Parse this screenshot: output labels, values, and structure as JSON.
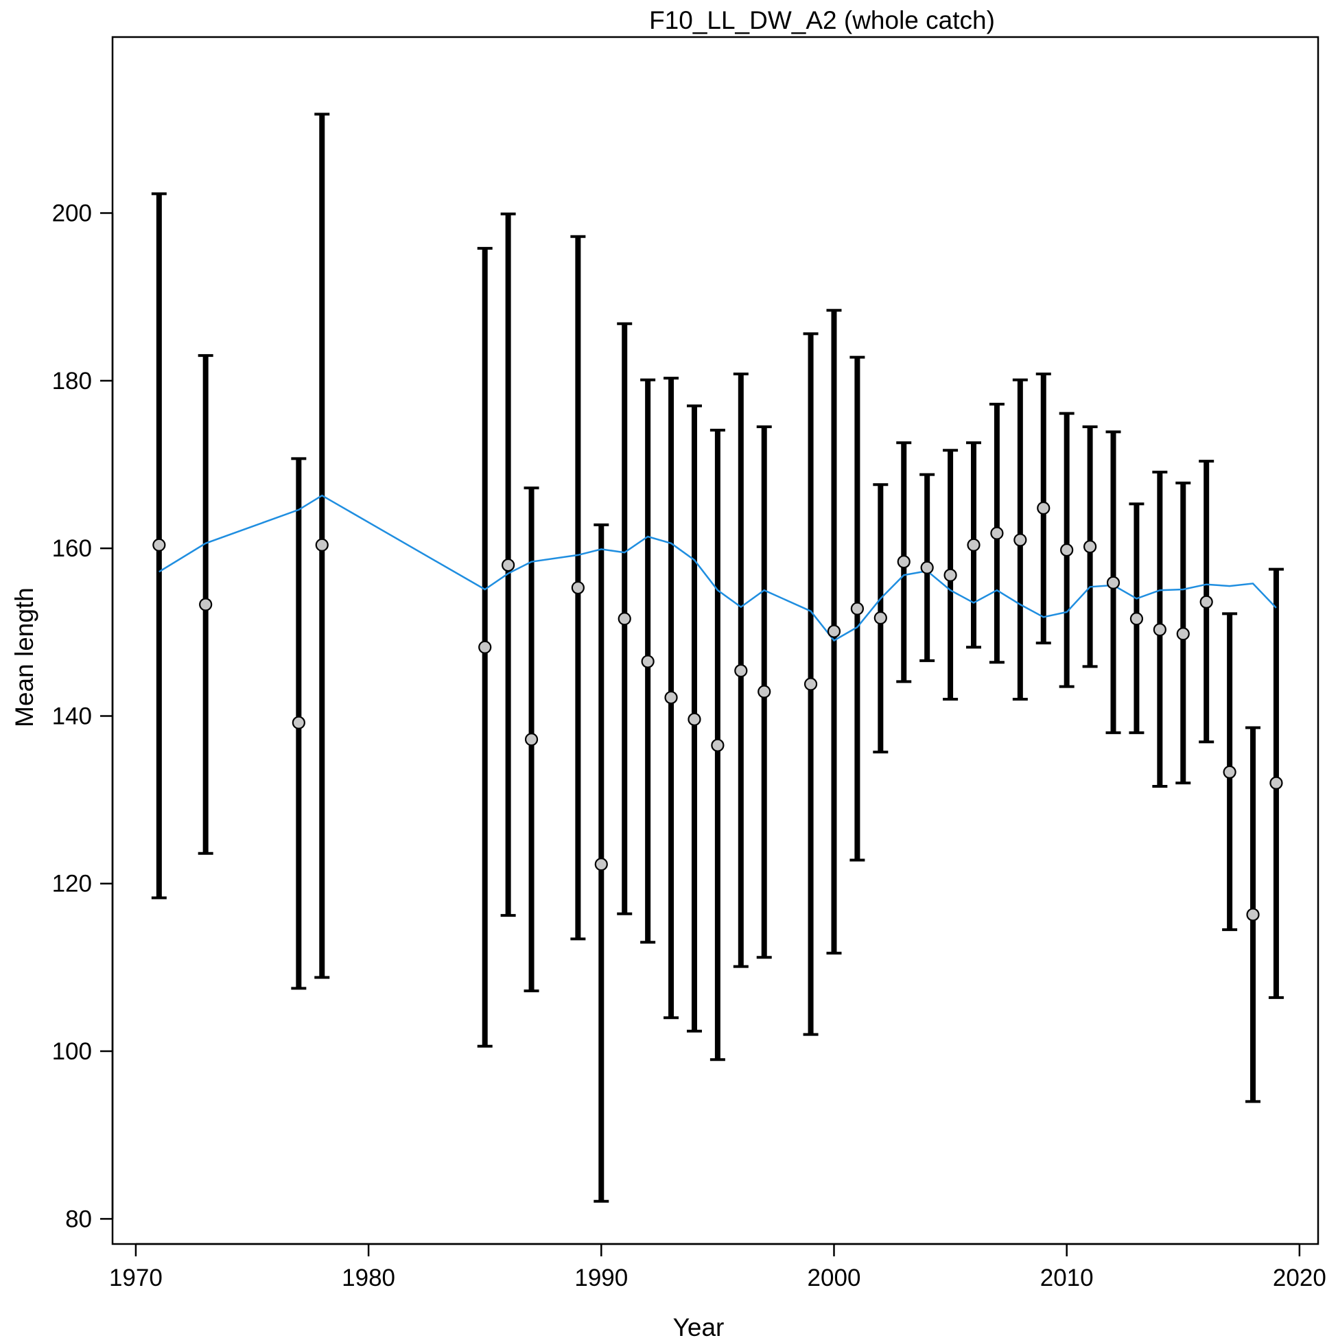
{
  "chart_data": {
    "type": "scatter",
    "title": "F10_LL_DW_A2 (whole catch)",
    "xlabel": "Year",
    "ylabel": "Mean length",
    "xlim": [
      1969,
      2020.8
    ],
    "ylim": [
      77,
      221
    ],
    "xticks": [
      1970,
      1980,
      1990,
      2000,
      2010,
      2020
    ],
    "yticks": [
      80,
      100,
      120,
      140,
      160,
      180,
      200
    ],
    "grid": false,
    "legend": "none",
    "colors": {
      "observed": "#000000",
      "point_fill": "#c8c8c8",
      "fitted": "#1f8ee0"
    },
    "observed": [
      {
        "x": 1971,
        "y": 160.4,
        "lo": 118.3,
        "hi": 202.3
      },
      {
        "x": 1973,
        "y": 153.3,
        "lo": 123.6,
        "hi": 183.0
      },
      {
        "x": 1977,
        "y": 139.2,
        "lo": 107.5,
        "hi": 170.7
      },
      {
        "x": 1978,
        "y": 160.4,
        "lo": 108.8,
        "hi": 211.8
      },
      {
        "x": 1985,
        "y": 148.2,
        "lo": 100.6,
        "hi": 195.8
      },
      {
        "x": 1986,
        "y": 158.0,
        "lo": 116.2,
        "hi": 199.9
      },
      {
        "x": 1987,
        "y": 137.2,
        "lo": 107.2,
        "hi": 167.2
      },
      {
        "x": 1989,
        "y": 155.3,
        "lo": 113.4,
        "hi": 197.2
      },
      {
        "x": 1990,
        "y": 122.3,
        "lo": 82.1,
        "hi": 162.8
      },
      {
        "x": 1991,
        "y": 151.6,
        "lo": 116.4,
        "hi": 186.8
      },
      {
        "x": 1992,
        "y": 146.5,
        "lo": 113.0,
        "hi": 180.1
      },
      {
        "x": 1993,
        "y": 142.2,
        "lo": 104.0,
        "hi": 180.3
      },
      {
        "x": 1994,
        "y": 139.6,
        "lo": 102.4,
        "hi": 177.0
      },
      {
        "x": 1995,
        "y": 136.5,
        "lo": 99.0,
        "hi": 174.1
      },
      {
        "x": 1996,
        "y": 145.4,
        "lo": 110.1,
        "hi": 180.8
      },
      {
        "x": 1997,
        "y": 142.9,
        "lo": 111.2,
        "hi": 174.5
      },
      {
        "x": 1999,
        "y": 143.8,
        "lo": 102.0,
        "hi": 185.6
      },
      {
        "x": 2000,
        "y": 150.1,
        "lo": 111.7,
        "hi": 188.4
      },
      {
        "x": 2001,
        "y": 152.8,
        "lo": 122.8,
        "hi": 182.8
      },
      {
        "x": 2002,
        "y": 151.7,
        "lo": 135.7,
        "hi": 167.6
      },
      {
        "x": 2003,
        "y": 158.4,
        "lo": 144.1,
        "hi": 172.6
      },
      {
        "x": 2004,
        "y": 157.7,
        "lo": 146.6,
        "hi": 168.8
      },
      {
        "x": 2005,
        "y": 156.8,
        "lo": 142.0,
        "hi": 171.7
      },
      {
        "x": 2006,
        "y": 160.4,
        "lo": 148.2,
        "hi": 172.6
      },
      {
        "x": 2007,
        "y": 161.8,
        "lo": 146.4,
        "hi": 177.2
      },
      {
        "x": 2008,
        "y": 161.0,
        "lo": 142.0,
        "hi": 180.1
      },
      {
        "x": 2009,
        "y": 164.8,
        "lo": 148.7,
        "hi": 180.8
      },
      {
        "x": 2010,
        "y": 159.8,
        "lo": 143.5,
        "hi": 176.1
      },
      {
        "x": 2011,
        "y": 160.2,
        "lo": 145.9,
        "hi": 174.5
      },
      {
        "x": 2012,
        "y": 155.9,
        "lo": 138.0,
        "hi": 173.9
      },
      {
        "x": 2013,
        "y": 151.6,
        "lo": 138.0,
        "hi": 165.3
      },
      {
        "x": 2014,
        "y": 150.3,
        "lo": 131.6,
        "hi": 169.1
      },
      {
        "x": 2015,
        "y": 149.8,
        "lo": 132.0,
        "hi": 167.8
      },
      {
        "x": 2016,
        "y": 153.6,
        "lo": 136.9,
        "hi": 170.4
      },
      {
        "x": 2017,
        "y": 133.3,
        "lo": 114.5,
        "hi": 152.2
      },
      {
        "x": 2018,
        "y": 116.3,
        "lo": 94.0,
        "hi": 138.6
      },
      {
        "x": 2019,
        "y": 132.0,
        "lo": 106.4,
        "hi": 157.5
      }
    ],
    "fitted": [
      {
        "x": 1971,
        "y": 157.2
      },
      {
        "x": 1973,
        "y": 160.6
      },
      {
        "x": 1977,
        "y": 164.6
      },
      {
        "x": 1978,
        "y": 166.3
      },
      {
        "x": 1985,
        "y": 155.1
      },
      {
        "x": 1986,
        "y": 157.0
      },
      {
        "x": 1987,
        "y": 158.4
      },
      {
        "x": 1989,
        "y": 159.2
      },
      {
        "x": 1990,
        "y": 159.9
      },
      {
        "x": 1991,
        "y": 159.5
      },
      {
        "x": 1992,
        "y": 161.4
      },
      {
        "x": 1993,
        "y": 160.6
      },
      {
        "x": 1994,
        "y": 158.6
      },
      {
        "x": 1995,
        "y": 155.0
      },
      {
        "x": 1996,
        "y": 153.0
      },
      {
        "x": 1997,
        "y": 155.0
      },
      {
        "x": 1999,
        "y": 152.5
      },
      {
        "x": 2000,
        "y": 149.0
      },
      {
        "x": 2001,
        "y": 150.6
      },
      {
        "x": 2002,
        "y": 154.0
      },
      {
        "x": 2003,
        "y": 156.8
      },
      {
        "x": 2004,
        "y": 157.3
      },
      {
        "x": 2005,
        "y": 155.0
      },
      {
        "x": 2006,
        "y": 153.5
      },
      {
        "x": 2007,
        "y": 155.0
      },
      {
        "x": 2008,
        "y": 153.3
      },
      {
        "x": 2009,
        "y": 151.8
      },
      {
        "x": 2010,
        "y": 152.4
      },
      {
        "x": 2011,
        "y": 155.4
      },
      {
        "x": 2012,
        "y": 155.6
      },
      {
        "x": 2013,
        "y": 154.0
      },
      {
        "x": 2014,
        "y": 155.0
      },
      {
        "x": 2015,
        "y": 155.1
      },
      {
        "x": 2016,
        "y": 155.7
      },
      {
        "x": 2017,
        "y": 155.5
      },
      {
        "x": 2018,
        "y": 155.8
      },
      {
        "x": 2019,
        "y": 152.9
      }
    ]
  }
}
